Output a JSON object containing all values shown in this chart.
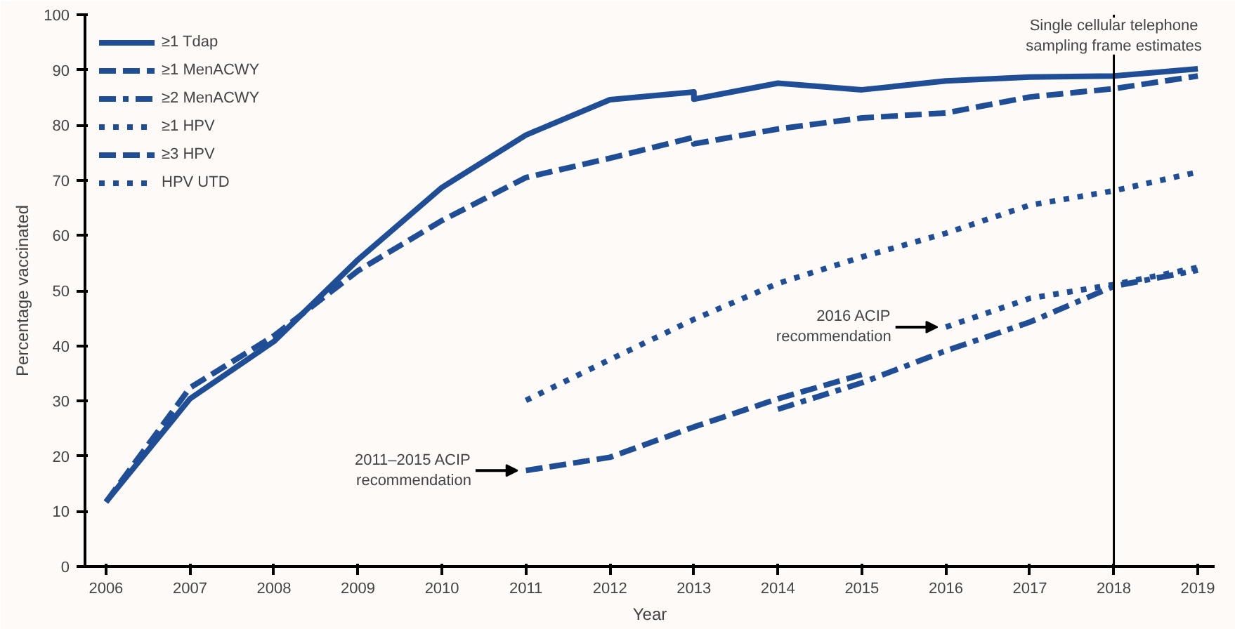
{
  "chart_data": {
    "type": "line",
    "xlabel": "Year",
    "ylabel": "Percentage vaccinated",
    "xlim": [
      2005.75,
      2019.2
    ],
    "xticks": [
      2006,
      2007,
      2008,
      2009,
      2010,
      2011,
      2012,
      2013,
      2014,
      2015,
      2016,
      2017,
      2018,
      2019
    ],
    "ylim": [
      0,
      100
    ],
    "yticks": [
      0,
      10,
      20,
      30,
      40,
      50,
      60,
      70,
      80,
      90,
      100
    ],
    "grid": false,
    "legend": "top left",
    "marker": "none",
    "series": [
      {
        "name": "≥1 Tdap",
        "color": "#1f4e97",
        "line_style": "solid",
        "x": [
          2006,
          2007,
          2008,
          2009,
          2010,
          2011,
          2012,
          2013,
          2013,
          2014,
          2015,
          2016,
          2017,
          2018,
          2019
        ],
        "values": [
          11.7,
          30.4,
          40.8,
          55.6,
          68.7,
          78.2,
          84.6,
          86.0,
          84.7,
          87.6,
          86.4,
          88.0,
          88.7,
          88.9,
          90.2
        ]
      },
      {
        "name": "≥1 MenACWY",
        "color": "#1f4e97",
        "line_style": "dashed",
        "x": [
          2006,
          2007,
          2008,
          2009,
          2010,
          2011,
          2012,
          2013,
          2013,
          2014,
          2015,
          2016,
          2017,
          2018,
          2019
        ],
        "values": [
          11.7,
          32.4,
          41.8,
          53.6,
          62.7,
          70.5,
          74.0,
          77.8,
          76.6,
          79.3,
          81.3,
          82.2,
          85.1,
          86.6,
          88.9
        ]
      },
      {
        "name": "≥2 MenACWY",
        "color": "#1f4e97",
        "line_style": "dashdot",
        "x": [
          2014,
          2015,
          2016,
          2017,
          2018,
          2019
        ],
        "values": [
          28.5,
          33.3,
          39.1,
          44.3,
          50.8,
          53.7
        ]
      },
      {
        "name": "≥1 HPV",
        "color": "#1f4e97",
        "line_style": "dotted",
        "x": [
          2011,
          2012,
          2013,
          2014,
          2015,
          2016,
          2017,
          2018,
          2019
        ],
        "values": [
          30.1,
          37.5,
          44.8,
          51.3,
          56.1,
          60.4,
          65.5,
          68.1,
          71.5
        ]
      },
      {
        "name": "≥3 HPV",
        "color": "#1f4e97",
        "line_style": "dashed",
        "x": [
          2011,
          2012,
          2013,
          2014,
          2015
        ],
        "values": [
          17.4,
          19.8,
          25.3,
          30.4,
          34.8
        ]
      },
      {
        "name": "HPV UTD",
        "color": "#1f4e97",
        "line_style": "dotted",
        "x": [
          2016,
          2017,
          2018,
          2019
        ],
        "values": [
          43.4,
          48.6,
          51.1,
          54.2
        ]
      }
    ],
    "ref_lines": [
      {
        "axis": "x",
        "value": 2018,
        "label": "Single cellular telephone\nsampling frame estimates",
        "color": "#000000",
        "line_style": "solid"
      }
    ],
    "annotations": [
      {
        "text": "2011–2015 ACIP\nrecommendation",
        "x": 2011,
        "y": 17.4
      },
      {
        "text": "2016 ACIP\nrecommendation",
        "x": 2016,
        "y": 43.4
      }
    ]
  }
}
